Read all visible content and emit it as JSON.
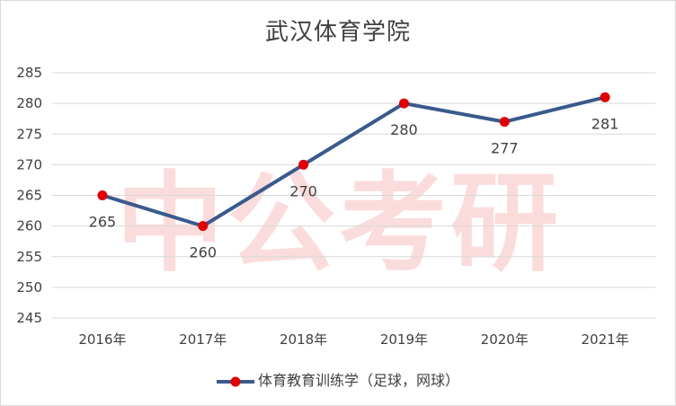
{
  "chart_data": {
    "type": "line",
    "title": "武汉体育学院",
    "watermark": "中公考研",
    "categories": [
      "2016年",
      "2017年",
      "2018年",
      "2019年",
      "2020年",
      "2021年"
    ],
    "series": [
      {
        "name": "体育教育训练学（足球，网球）",
        "values": [
          265,
          260,
          270,
          280,
          277,
          281
        ]
      }
    ],
    "data_labels": [
      "265",
      "260",
      "270",
      "280",
      "277",
      "281"
    ],
    "y_ticks": [
      "285",
      "280",
      "275",
      "270",
      "265",
      "260",
      "255",
      "250",
      "245"
    ],
    "ylim": [
      245,
      285
    ],
    "ystep": 5,
    "grid": true,
    "legend_position": "bottom",
    "colors": {
      "line": "#3a5a8c",
      "marker": "#e00000",
      "grid": "#d9d9d9",
      "text": "#404040"
    }
  }
}
